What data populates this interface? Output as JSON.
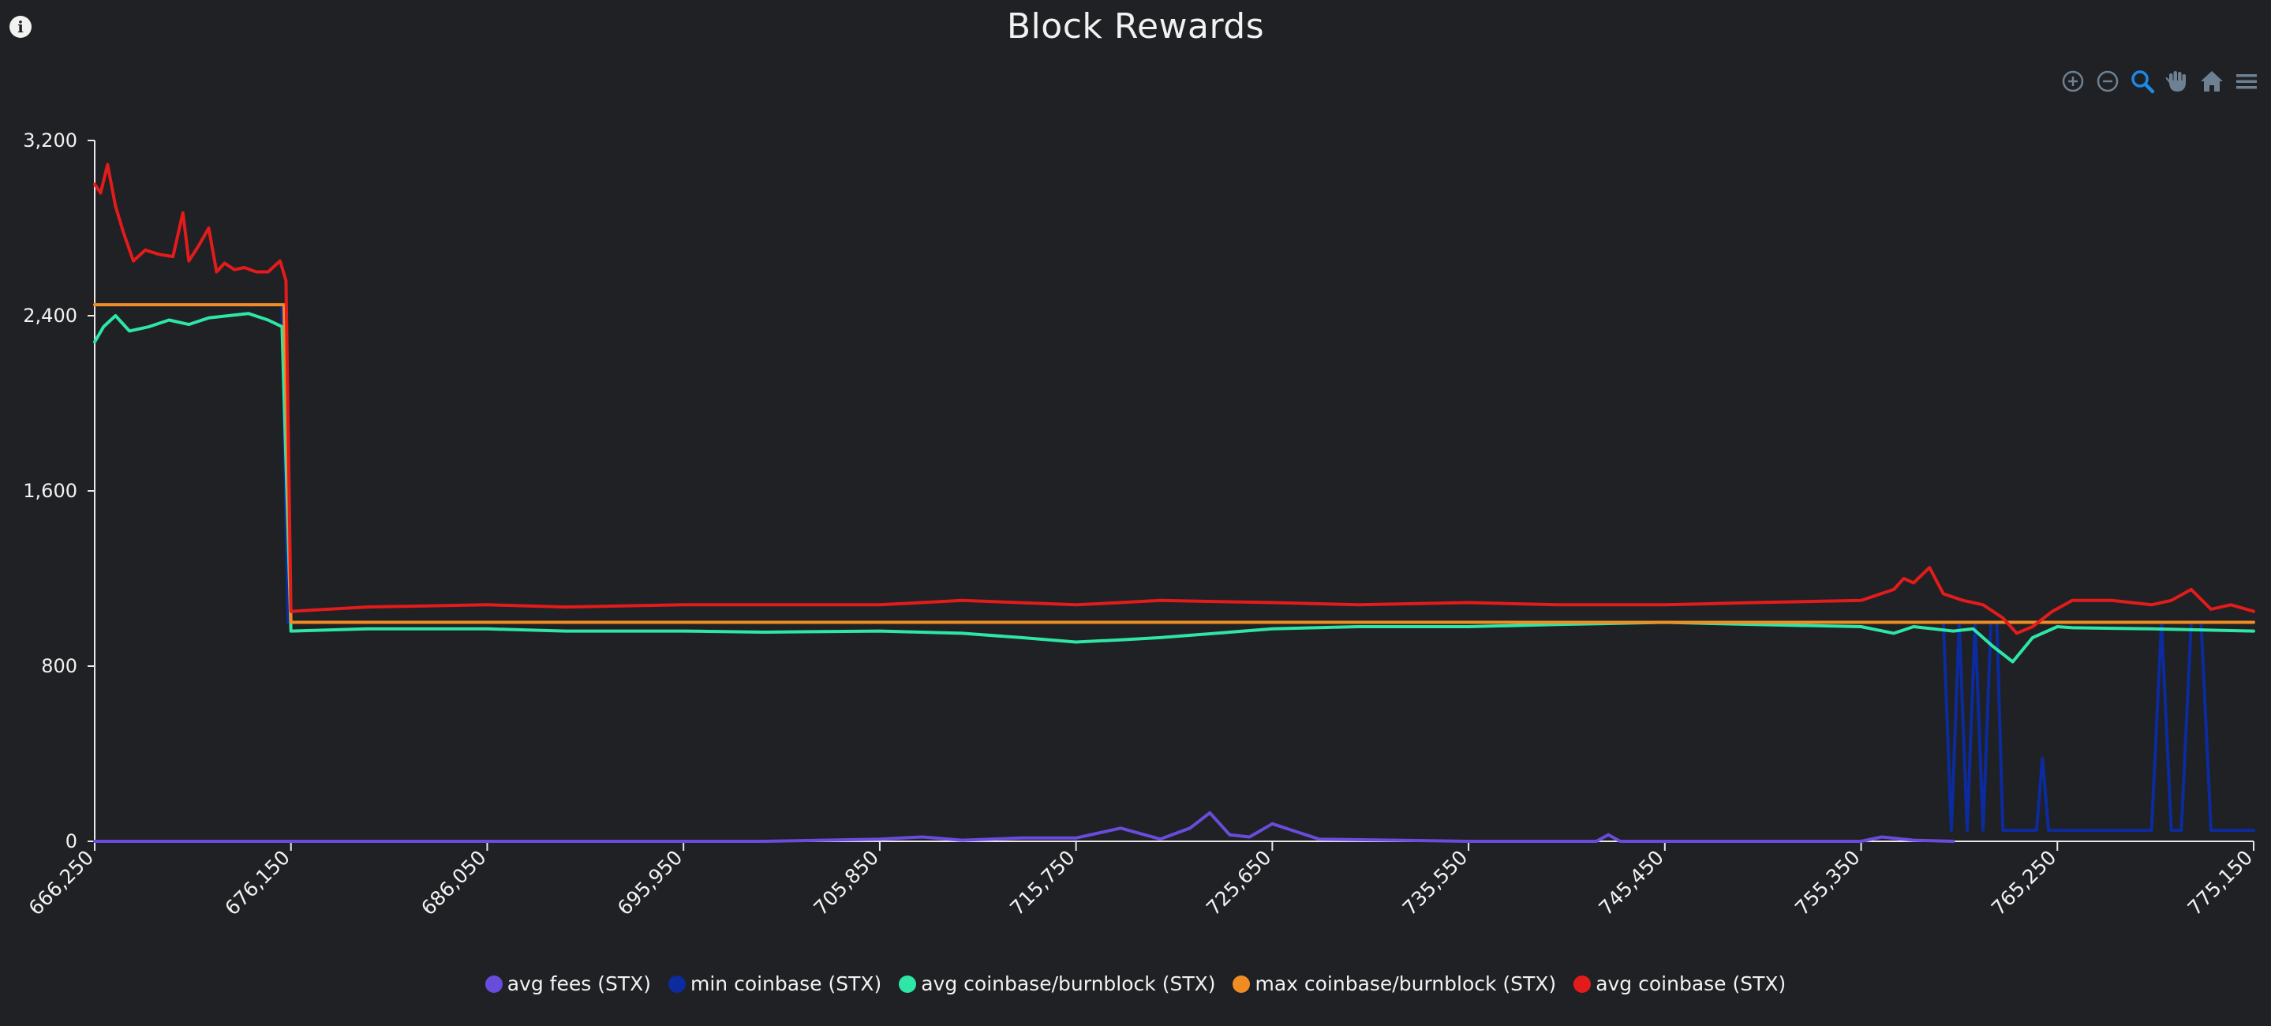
{
  "chart_data": {
    "type": "line",
    "title": "Block Rewards",
    "xlabel": "",
    "ylabel": "",
    "xlim": [
      666250,
      775150
    ],
    "ylim": [
      0,
      3200
    ],
    "x_ticks": [
      "666,250",
      "676,150",
      "686,050",
      "695,950",
      "705,850",
      "715,750",
      "725,650",
      "735,550",
      "745,450",
      "755,350",
      "765,250",
      "775,150"
    ],
    "y_ticks": [
      "0",
      "800",
      "1,600",
      "2,400",
      "3,200"
    ],
    "grid": false,
    "legend_position": "bottom",
    "series": [
      {
        "name": "avg fees (STX)",
        "color": "#6a4cdc",
        "x": [
          666250,
          676150,
          686050,
          695950,
          700000,
          705850,
          708000,
          710000,
          713000,
          715750,
          718000,
          720000,
          721500,
          722500,
          723500,
          724500,
          725650,
          728000,
          735550,
          742000,
          742600,
          743200,
          745450,
          755350,
          756400,
          758000,
          760000
        ],
        "y": [
          0,
          0,
          0,
          0,
          0,
          10,
          20,
          5,
          15,
          15,
          60,
          10,
          60,
          130,
          30,
          20,
          80,
          10,
          0,
          0,
          30,
          0,
          0,
          0,
          20,
          5,
          0
        ]
      },
      {
        "name": "min coinbase (STX)",
        "color": "#0b2b9e",
        "x": [
          666250,
          675700,
          676000,
          676150,
          755350,
          759500,
          759900,
          760300,
          760700,
          761100,
          761500,
          761900,
          762200,
          762500,
          764200,
          764500,
          764800,
          770000,
          770500,
          771000,
          771500,
          772000,
          772500,
          773000,
          775150
        ],
        "y": [
          2450,
          2450,
          1000,
          1000,
          1000,
          1000,
          50,
          1000,
          50,
          1000,
          50,
          1000,
          1000,
          50,
          50,
          380,
          50,
          50,
          1000,
          50,
          50,
          1000,
          1000,
          50,
          50
        ]
      },
      {
        "name": "avg coinbase/burnblock (STX)",
        "color": "#2ee6a6",
        "x": [
          666250,
          666700,
          667300,
          668000,
          669000,
          670000,
          671000,
          672000,
          673000,
          674000,
          675000,
          675700,
          676150,
          680000,
          686050,
          690000,
          695950,
          700000,
          705850,
          710000,
          713000,
          715750,
          718000,
          720000,
          725650,
          730000,
          735550,
          740000,
          745450,
          750000,
          755350,
          757000,
          758000,
          760000,
          761000,
          762000,
          763000,
          764000,
          765250,
          766000,
          770000,
          775150
        ],
        "y": [
          2280,
          2350,
          2400,
          2330,
          2350,
          2380,
          2360,
          2390,
          2400,
          2410,
          2380,
          2350,
          960,
          970,
          970,
          960,
          960,
          955,
          960,
          950,
          930,
          910,
          920,
          930,
          970,
          980,
          980,
          990,
          1000,
          990,
          980,
          950,
          980,
          960,
          970,
          890,
          820,
          930,
          980,
          975,
          970,
          960
        ]
      },
      {
        "name": "max coinbase/burnblock (STX)",
        "color": "#f08c24",
        "x": [
          666250,
          675800,
          676150,
          775150
        ],
        "y": [
          2450,
          2450,
          1000,
          1000
        ]
      },
      {
        "name": "avg coinbase (STX)",
        "color": "#e41b1b",
        "x": [
          666250,
          666550,
          666900,
          667300,
          667700,
          668200,
          668800,
          669500,
          670200,
          670700,
          671000,
          671500,
          672000,
          672400,
          672800,
          673300,
          673800,
          674400,
          675000,
          675600,
          675900,
          676150,
          680000,
          686050,
          690000,
          695950,
          700000,
          705850,
          710000,
          715750,
          718000,
          720000,
          725650,
          730000,
          735550,
          740000,
          745450,
          750000,
          755350,
          757000,
          757500,
          758000,
          758800,
          759500,
          760500,
          761500,
          762500,
          763200,
          764000,
          765000,
          766000,
          768000,
          770000,
          771000,
          772000,
          773000,
          774000,
          775150
        ],
        "y": [
          3000,
          2960,
          3090,
          2900,
          2780,
          2650,
          2700,
          2680,
          2670,
          2870,
          2650,
          2720,
          2800,
          2600,
          2640,
          2610,
          2620,
          2600,
          2600,
          2650,
          2560,
          1050,
          1070,
          1080,
          1070,
          1080,
          1080,
          1080,
          1100,
          1080,
          1090,
          1100,
          1090,
          1080,
          1090,
          1080,
          1080,
          1090,
          1100,
          1150,
          1200,
          1180,
          1250,
          1130,
          1100,
          1080,
          1020,
          950,
          980,
          1050,
          1100,
          1100,
          1080,
          1100,
          1150,
          1060,
          1080,
          1050
        ]
      }
    ]
  },
  "toolbar": {
    "icons": [
      "zoom-in-icon",
      "zoom-out-icon",
      "zoom-selection-icon",
      "pan-icon",
      "home-icon",
      "menu-icon"
    ],
    "active_color": "#1e88e5",
    "inactive_color": "#6e8192"
  },
  "info_icon": "info-icon",
  "theme": {
    "background": "#202124",
    "axis_color": "#e8e8e8",
    "text_color": "#f2f2f2"
  }
}
